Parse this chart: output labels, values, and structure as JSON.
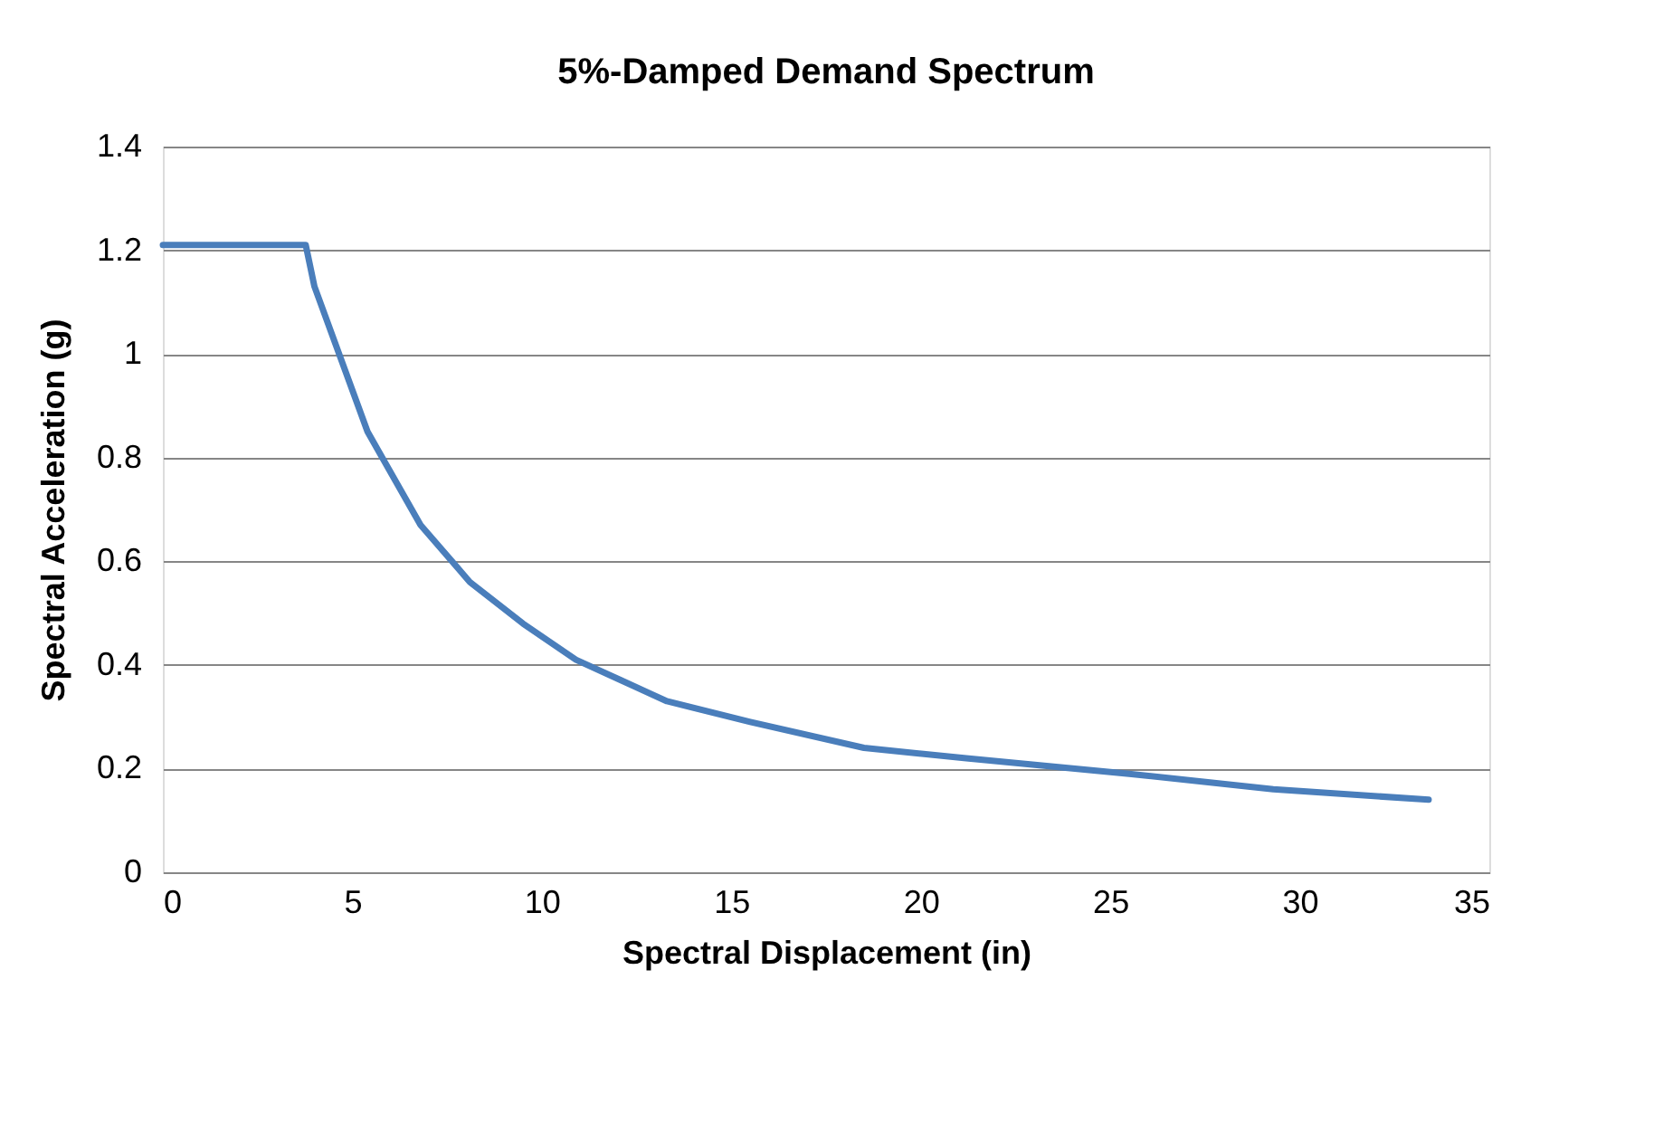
{
  "chart_data": {
    "type": "line",
    "title": "5%-Damped Demand Spectrum",
    "xlabel": "Spectral Displacement (in)",
    "ylabel": "Spectral Acceleration (g)",
    "x": [
      0,
      3.77,
      4.0,
      5.4,
      6.8,
      8.1,
      9.5,
      10.9,
      12.1,
      13.3,
      15.5,
      18.5,
      21.2,
      25.5,
      29.3,
      33.4
    ],
    "series": [
      {
        "color": "#4a7ebb",
        "values": [
          1.21,
          1.21,
          1.13,
          0.85,
          0.67,
          0.56,
          0.48,
          0.41,
          0.37,
          0.33,
          0.29,
          0.24,
          0.22,
          0.19,
          0.16,
          0.14
        ]
      }
    ],
    "xlim": [
      0,
      35
    ],
    "xticks": [
      0,
      5,
      10,
      15,
      20,
      25,
      30,
      35
    ],
    "ylim": [
      0,
      1.4
    ],
    "yticks": [
      0,
      0.2,
      0.4,
      0.6,
      0.8,
      1,
      1.2,
      1.4
    ],
    "grid": "y",
    "marker": "none",
    "line_style": "solid"
  }
}
